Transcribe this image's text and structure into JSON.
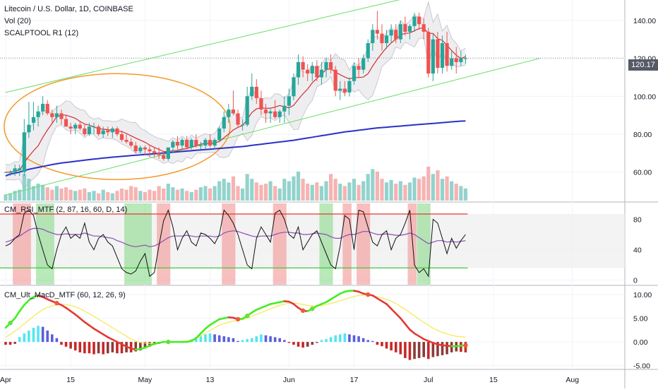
{
  "legend": {
    "title": "Litecoin / U.S. Dollar, 1D, COINBASE",
    "vol": "Vol (20)",
    "scalp": "SCALPTOOL R1 (12)",
    "rsi": "CM_RSI_MTF (2, 87, 16, 60, D, 14)",
    "macd": "CM_Ult_MacD_MTF (60, 12, 26, 9)"
  },
  "colors": {
    "up": "#26a69a",
    "down": "#ef5350",
    "volume_up": "#80cbc4",
    "volume_down": "#f4a6a5",
    "trendline": "#66dd66",
    "sma": "#2b30c8",
    "ellipse": "#f49a2a",
    "bb_fill": "#e8e8ec",
    "rsi_line": "#111111",
    "rsi_signal": "#8d4fb4",
    "macd_rising": "#44ee22",
    "macd_falling": "#e53935",
    "macd_signal": "#f6ea5a"
  },
  "chart_data": [
    {
      "type": "candlestick",
      "title": "Litecoin / U.S. Dollar, 1D, COINBASE",
      "ylim": [
        45,
        150
      ],
      "yticks": [
        60,
        80,
        100,
        120,
        140
      ],
      "ytick_labels": [
        "60.00",
        "80.00",
        "100.00",
        "120.00",
        "140.00"
      ],
      "xtick_labels": [
        "Apr",
        "15",
        "May",
        "13",
        "Jun",
        "17",
        "Jul",
        "15",
        "Aug"
      ],
      "last_price": 120.17,
      "last_price_label": "120.17",
      "ohlc": [
        [
          60,
          60,
          60,
          60
        ],
        [
          60,
          61,
          58,
          60
        ],
        [
          60,
          64,
          58,
          62
        ],
        [
          61,
          64,
          58,
          62
        ],
        [
          60,
          88,
          58,
          81
        ],
        [
          81,
          97,
          78,
          85
        ],
        [
          86,
          97,
          82,
          89
        ],
        [
          89,
          95,
          84,
          92
        ],
        [
          92,
          100,
          90,
          96
        ],
        [
          96,
          98,
          90,
          91
        ],
        [
          91,
          93,
          86,
          89
        ],
        [
          89,
          95,
          86,
          91
        ],
        [
          91,
          93,
          85,
          88
        ],
        [
          88,
          90,
          84,
          84
        ],
        [
          84,
          86,
          80,
          83
        ],
        [
          83,
          86,
          80,
          85
        ],
        [
          85,
          87,
          82,
          83
        ],
        [
          83,
          85,
          79,
          80
        ],
        [
          80,
          86,
          79,
          84
        ],
        [
          84,
          86,
          80,
          84
        ],
        [
          84,
          85,
          79,
          80
        ],
        [
          80,
          84,
          78,
          82
        ],
        [
          82,
          84,
          79,
          81
        ],
        [
          81,
          84,
          78,
          83
        ],
        [
          83,
          84,
          79,
          80
        ],
        [
          80,
          82,
          76,
          77
        ],
        [
          77,
          80,
          75,
          76
        ],
        [
          76,
          78,
          73,
          74
        ],
        [
          74,
          76,
          70,
          71
        ],
        [
          71,
          74,
          69,
          73
        ],
        [
          73,
          74,
          69,
          72
        ],
        [
          72,
          74,
          68,
          71
        ],
        [
          71,
          73,
          68,
          70
        ],
        [
          70,
          73,
          67,
          69
        ],
        [
          69,
          71,
          66,
          67
        ],
        [
          67,
          73,
          66,
          73
        ],
        [
          73,
          77,
          70,
          76
        ],
        [
          76,
          79,
          72,
          74
        ],
        [
          74,
          78,
          72,
          77
        ],
        [
          77,
          79,
          72,
          73
        ],
        [
          73,
          78,
          72,
          77
        ],
        [
          77,
          80,
          73,
          74
        ],
        [
          74,
          76,
          72,
          74
        ],
        [
          74,
          78,
          72,
          77
        ],
        [
          77,
          80,
          73,
          74
        ],
        [
          74,
          78,
          72,
          77
        ],
        [
          77,
          84,
          76,
          83
        ],
        [
          83,
          92,
          81,
          89
        ],
        [
          89,
          96,
          86,
          93
        ],
        [
          93,
          103,
          90,
          91
        ],
        [
          91,
          93,
          84,
          85
        ],
        [
          85,
          88,
          82,
          85
        ],
        [
          85,
          105,
          84,
          100
        ],
        [
          100,
          112,
          98,
          105
        ],
        [
          105,
          109,
          96,
          99
        ],
        [
          99,
          103,
          90,
          93
        ],
        [
          93,
          96,
          86,
          91
        ],
        [
          91,
          94,
          86,
          92
        ],
        [
          92,
          98,
          88,
          89
        ],
        [
          89,
          93,
          86,
          92
        ],
        [
          92,
          100,
          86,
          95
        ],
        [
          95,
          104,
          90,
          100
        ],
        [
          100,
          112,
          98,
          110
        ],
        [
          110,
          122,
          106,
          118
        ],
        [
          118,
          121,
          110,
          114
        ],
        [
          114,
          117,
          108,
          112
        ],
        [
          112,
          118,
          108,
          116
        ],
        [
          116,
          119,
          108,
          110
        ],
        [
          110,
          118,
          106,
          114
        ],
        [
          114,
          120,
          110,
          118
        ],
        [
          118,
          122,
          112,
          114
        ],
        [
          114,
          116,
          100,
          103
        ],
        [
          103,
          108,
          98,
          104
        ],
        [
          104,
          108,
          100,
          102
        ],
        [
          102,
          110,
          100,
          108
        ],
        [
          108,
          118,
          106,
          116
        ],
        [
          116,
          120,
          110,
          114
        ],
        [
          114,
          122,
          112,
          120
        ],
        [
          120,
          130,
          118,
          128
        ],
        [
          128,
          138,
          124,
          135
        ],
        [
          135,
          145,
          130,
          133
        ],
        [
          133,
          138,
          124,
          128
        ],
        [
          128,
          135,
          125,
          132
        ],
        [
          132,
          138,
          128,
          135
        ],
        [
          135,
          138,
          128,
          130
        ],
        [
          130,
          140,
          128,
          138
        ],
        [
          138,
          142,
          132,
          134
        ],
        [
          134,
          138,
          130,
          137
        ],
        [
          137,
          144,
          134,
          142
        ],
        [
          142,
          144,
          135,
          138
        ],
        [
          138,
          141,
          130,
          134
        ],
        [
          134,
          136,
          110,
          112
        ],
        [
          112,
          133,
          108,
          130
        ],
        [
          130,
          134,
          112,
          115
        ],
        [
          115,
          132,
          112,
          128
        ],
        [
          128,
          134,
          113,
          116
        ],
        [
          116,
          124,
          114,
          120
        ],
        [
          120,
          126,
          112,
          118
        ],
        [
          118,
          124,
          116,
          120
        ],
        [
          120,
          122,
          117,
          120
        ]
      ],
      "volume": [
        5,
        6,
        8,
        9,
        22,
        18,
        12,
        14,
        13,
        11,
        9,
        12,
        10,
        11,
        9,
        8,
        9,
        10,
        7,
        8,
        6,
        9,
        7,
        6,
        8,
        10,
        9,
        12,
        11,
        8,
        7,
        9,
        8,
        12,
        10,
        14,
        11,
        9,
        10,
        8,
        7,
        9,
        11,
        12,
        10,
        12,
        16,
        18,
        15,
        20,
        12,
        10,
        22,
        18,
        15,
        13,
        14,
        16,
        12,
        10,
        18,
        16,
        20,
        24,
        18,
        14,
        13,
        15,
        12,
        16,
        22,
        18,
        14,
        12,
        15,
        18,
        13,
        16,
        22,
        26,
        24,
        18,
        15,
        17,
        14,
        16,
        13,
        15,
        19,
        18,
        20,
        28,
        22,
        25,
        18,
        20,
        16,
        14,
        12,
        10
      ],
      "sma": [
        58,
        59,
        59.5,
        60,
        60.8,
        61.5,
        62,
        62.5,
        63,
        63.5,
        64,
        64.4,
        64.8,
        65.1,
        65.4,
        65.7,
        66,
        66.3,
        66.6,
        66.9,
        67.1,
        67.4,
        67.6,
        67.9,
        68.1,
        68.3,
        68.5,
        68.7,
        68.9,
        69.1,
        69.3,
        69.5,
        69.7,
        69.9,
        70.1,
        70.3,
        70.5,
        70.7,
        70.9,
        71.1,
        71.3,
        71.5,
        71.7,
        71.9,
        72.1,
        72.3,
        72.5,
        72.7,
        72.9,
        73.1,
        73.3,
        73.5,
        73.8,
        74.1,
        74.4,
        74.7,
        75,
        75.3,
        75.6,
        75.9,
        76.2,
        76.5,
        76.8,
        77.2,
        77.6,
        78,
        78.4,
        78.8,
        79.2,
        79.6,
        80,
        80.4,
        80.8,
        81.2,
        81.5,
        81.8,
        82.1,
        82.4,
        82.7,
        83,
        83.3,
        83.5,
        83.7,
        83.9,
        84.1,
        84.3,
        84.5,
        84.7,
        84.9,
        85.1,
        85.3,
        85.5,
        85.7,
        85.9,
        86.1,
        86.3,
        86.5,
        86.7,
        86.9,
        87
      ]
    },
    {
      "type": "line",
      "title": "CM_RSI_MTF (2, 87, 16, 60, D, 14)",
      "ylim": [
        -5,
        100
      ],
      "yticks": [
        0,
        40,
        80
      ],
      "ytick_labels": [
        "0",
        "40",
        "80"
      ],
      "levels": [
        87,
        16
      ],
      "rsi": [
        45,
        48,
        55,
        60,
        88,
        92,
        85,
        60,
        40,
        20,
        15,
        40,
        60,
        70,
        55,
        60,
        55,
        75,
        50,
        40,
        55,
        60,
        50,
        45,
        30,
        15,
        10,
        8,
        12,
        25,
        35,
        5,
        10,
        45,
        78,
        92,
        70,
        40,
        55,
        65,
        50,
        45,
        62,
        60,
        55,
        48,
        60,
        92,
        85,
        75,
        60,
        40,
        20,
        15,
        55,
        70,
        60,
        50,
        88,
        92,
        80,
        60,
        55,
        70,
        40,
        50,
        60,
        65,
        50,
        35,
        20,
        15,
        45,
        85,
        80,
        40,
        92,
        90,
        70,
        50,
        45,
        60,
        65,
        40,
        55,
        60,
        75,
        92,
        20,
        10,
        15,
        5,
        80,
        75,
        55,
        35,
        55,
        42,
        52,
        60
      ],
      "signal": [
        50,
        52,
        55,
        58,
        62,
        66,
        68,
        68,
        67,
        64,
        62,
        60,
        60,
        61,
        60,
        60,
        60,
        62,
        60,
        58,
        58,
        57,
        56,
        55,
        52,
        50,
        47,
        45,
        44,
        45,
        46,
        44,
        45,
        48,
        52,
        56,
        58,
        58,
        58,
        59,
        58,
        57,
        58,
        58,
        58,
        57,
        58,
        62,
        64,
        65,
        64,
        62,
        60,
        58,
        57,
        58,
        58,
        58,
        60,
        62,
        63,
        63,
        62,
        62,
        60,
        60,
        61,
        62,
        61,
        60,
        57,
        55,
        55,
        58,
        60,
        60,
        62,
        64,
        64,
        62,
        60,
        60,
        61,
        60,
        59,
        59,
        60,
        62,
        60,
        56,
        52,
        48,
        50,
        52,
        52,
        50,
        51,
        50,
        51,
        52
      ],
      "overbought_bands": [
        [
          2,
          5
        ],
        [
          33,
          35
        ],
        [
          47,
          49
        ],
        [
          58,
          60
        ],
        [
          73,
          74
        ],
        [
          76,
          78
        ],
        [
          87,
          88
        ]
      ],
      "oversold_bands": [
        [
          7,
          10
        ],
        [
          26,
          31
        ],
        [
          68,
          70
        ],
        [
          89,
          91
        ]
      ]
    },
    {
      "type": "line",
      "title": "CM_Ult_MacD_MTF (60, 12, 26, 9)",
      "ylim": [
        -5.5,
        11.5
      ],
      "yticks": [
        10,
        5,
        0,
        -5
      ],
      "ytick_labels": [
        "10.00",
        "5.00",
        "0.00",
        "-5.00"
      ],
      "macd": [
        3,
        4,
        5,
        6.5,
        7.8,
        8.8,
        9.5,
        9.8,
        9.5,
        9,
        8.6,
        8.2,
        7.8,
        7.2,
        6.5,
        5.8,
        5,
        4.2,
        3.5,
        2.8,
        2.2,
        1.6,
        1,
        0.5,
        0,
        -0.5,
        -1,
        -1.4,
        -1.6,
        -1.5,
        -1.2,
        -0.8,
        -0.4,
        -0.2,
        0,
        0,
        0,
        0,
        0,
        0,
        0.2,
        0.8,
        1.8,
        2.8,
        3.6,
        4.2,
        4.8,
        5,
        5.2,
        5.1,
        4.8,
        4.9,
        5.5,
        6.2,
        6.8,
        7.2,
        7.6,
        8,
        8.2,
        8.4,
        8.6,
        8.5,
        8,
        7.2,
        6.6,
        6.5,
        7,
        7.6,
        8,
        8.4,
        9,
        9.6,
        10.2,
        10.6,
        10.8,
        10.8,
        10.6,
        10.2,
        10,
        9.8,
        9.2,
        8.6,
        8,
        7,
        6,
        5,
        3.8,
        2.6,
        1.8,
        1.2,
        0.6,
        0.2,
        -0.2,
        -0.5,
        -0.7,
        -0.8,
        -0.9,
        -0.9,
        -0.8,
        -0.7
      ],
      "signal": [
        1,
        1.6,
        2.3,
        3,
        3.8,
        4.6,
        5.4,
        6.2,
        6.8,
        7.3,
        7.6,
        7.8,
        7.9,
        7.9,
        7.7,
        7.4,
        7,
        6.5,
        6,
        5.4,
        4.8,
        4.2,
        3.6,
        3,
        2.4,
        1.8,
        1.2,
        0.6,
        0.2,
        -0.1,
        -0.2,
        -0.3,
        -0.3,
        -0.2,
        -0.1,
        0,
        0,
        0,
        0.1,
        0.2,
        0.4,
        0.8,
        1.2,
        1.8,
        2.4,
        3,
        3.5,
        3.9,
        4.2,
        4.4,
        4.6,
        4.7,
        5,
        5.4,
        5.8,
        6.2,
        6.6,
        7,
        7.4,
        7.7,
        8,
        8.2,
        8.2,
        8.1,
        7.9,
        7.7,
        7.6,
        7.6,
        7.7,
        7.9,
        8.1,
        8.4,
        8.7,
        9,
        9.3,
        9.6,
        9.8,
        9.9,
        9.9,
        9.8,
        9.6,
        9.3,
        9,
        8.6,
        8.1,
        7.5,
        6.9,
        6.2,
        5.5,
        4.8,
        4.1,
        3.5,
        2.9,
        2.4,
        2,
        1.7,
        1.4,
        1.2,
        1.1,
        1
      ],
      "histogram": [
        -0.6,
        -0.6,
        -0.4,
        1,
        1.8,
        2.4,
        3,
        3.4,
        3.2,
        2.4,
        1.6,
        0.8,
        -0.6,
        -1,
        -1.4,
        -1.8,
        -2.2,
        -2.4,
        -2.4,
        -2.6,
        -2.4,
        -2.6,
        -2.4,
        -2.2,
        -2.4,
        -2.4,
        -2.2,
        -2.2,
        -2,
        -1.8,
        -1.4,
        -1,
        -0.6,
        -0.4,
        -0.2,
        0,
        0,
        0,
        -0.2,
        0.2,
        0.6,
        1,
        1.4,
        1.6,
        1.8,
        1.6,
        1.4,
        1.2,
        1,
        0.8,
        0.2,
        0.4,
        0.6,
        0.8,
        1.2,
        1.6,
        1.4,
        1.2,
        1,
        0.8,
        0.4,
        -0.2,
        -0.6,
        -1,
        -1.2,
        -1,
        -0.6,
        -0.2,
        0.4,
        0.6,
        1,
        1.4,
        1.6,
        1.8,
        1.6,
        1.4,
        1.2,
        0.8,
        0.4,
        0.2,
        -0.6,
        -0.9,
        -1.4,
        -1.8,
        -2.2,
        -2.6,
        -3.4,
        -3.8,
        -3.6,
        -3.4,
        -3.2,
        -3.6,
        -3.2,
        -3,
        -2.8,
        -2.6,
        -2.2,
        -2,
        -2.1,
        -2.2
      ],
      "cross_dots": [
        {
          "i": 1,
          "kind": "up"
        },
        {
          "i": 11,
          "kind": "down"
        },
        {
          "i": 35,
          "kind": "up"
        },
        {
          "i": 50,
          "kind": "down"
        },
        {
          "i": 52,
          "kind": "up"
        },
        {
          "i": 64,
          "kind": "down"
        },
        {
          "i": 66,
          "kind": "up"
        },
        {
          "i": 78,
          "kind": "down"
        },
        {
          "i": 99,
          "kind": "down"
        }
      ]
    }
  ]
}
